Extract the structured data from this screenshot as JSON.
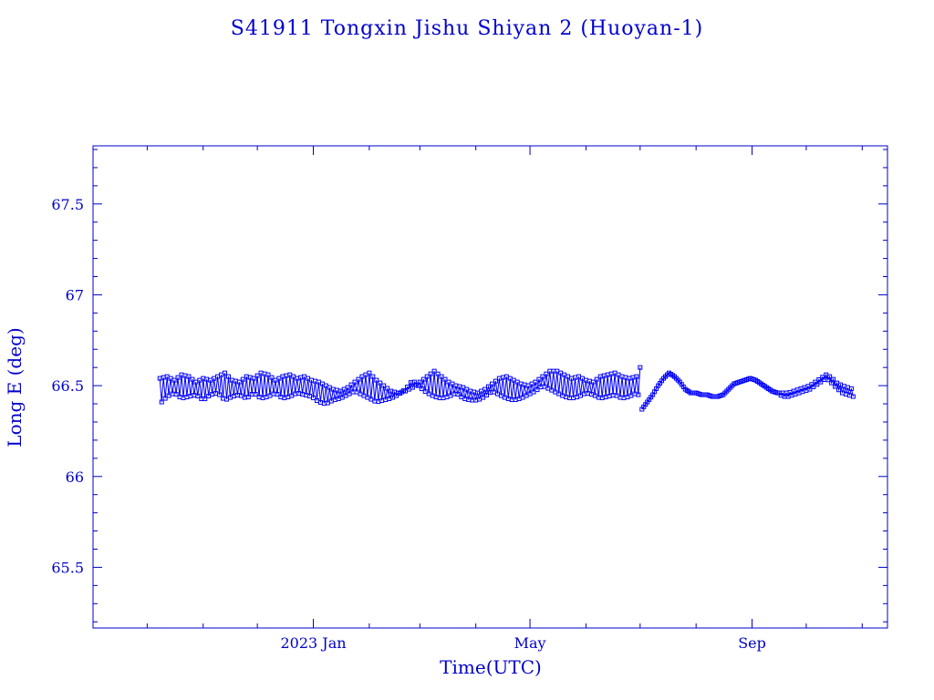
{
  "chart_data": {
    "type": "scatter",
    "title": "S41911 Tongxin Jishu Shiyan 2  (Huoyan-1)",
    "xlabel": "Time(UTC)",
    "ylabel": "Long E (deg)",
    "xlim": [
      "2022-09-01",
      "2023-11-15"
    ],
    "ylim": [
      65.166,
      67.82
    ],
    "x_ticks": [
      {
        "date": "2023-01-01",
        "label": "2023 Jan"
      },
      {
        "date": "2023-05-01",
        "label": "May"
      },
      {
        "date": "2023-09-01",
        "label": "Sep"
      }
    ],
    "y_ticks": [
      {
        "value": 65.5,
        "label": "65.5"
      },
      {
        "value": 66,
        "label": "66"
      },
      {
        "value": 66.5,
        "label": "66.5"
      },
      {
        "value": 67,
        "label": "67"
      },
      {
        "value": 67.5,
        "label": "67.5"
      }
    ],
    "grid": false,
    "marker": "open-square",
    "color": "#0000ff",
    "series": [
      {
        "x": [
          "2022-10-08",
          "2022-10-12",
          "2022-10-16",
          "2022-10-20",
          "2022-10-24",
          "2022-10-28",
          "2022-11-01",
          "2022-11-05",
          "2022-11-09",
          "2022-11-13",
          "2022-11-17",
          "2022-11-21",
          "2022-11-25",
          "2022-11-29",
          "2022-12-03",
          "2022-12-07",
          "2022-12-11",
          "2022-12-15",
          "2022-12-19",
          "2022-12-23",
          "2022-12-27",
          "2022-12-31",
          "2023-01-04",
          "2023-01-08",
          "2023-01-12",
          "2023-01-16",
          "2023-01-20",
          "2023-01-24",
          "2023-01-28",
          "2023-02-01",
          "2023-02-05",
          "2023-02-09",
          "2023-02-13",
          "2023-02-17",
          "2023-02-21",
          "2023-02-25",
          "2023-03-01",
          "2023-03-05",
          "2023-03-09",
          "2023-03-13",
          "2023-03-17",
          "2023-03-21",
          "2023-03-25",
          "2023-03-29",
          "2023-04-02",
          "2023-04-06",
          "2023-04-10",
          "2023-04-14",
          "2023-04-18",
          "2023-04-22",
          "2023-04-26",
          "2023-04-30",
          "2023-05-04",
          "2023-05-08",
          "2023-05-12",
          "2023-05-16",
          "2023-05-20",
          "2023-05-24",
          "2023-05-28",
          "2023-06-01",
          "2023-06-05",
          "2023-06-09",
          "2023-06-13",
          "2023-06-17",
          "2023-06-21",
          "2023-06-25",
          "2023-06-29",
          "2023-07-01"
        ],
        "y_upper": [
          66.54,
          66.55,
          66.53,
          66.56,
          66.55,
          66.52,
          66.54,
          66.53,
          66.55,
          66.57,
          66.53,
          66.52,
          66.55,
          66.54,
          66.57,
          66.56,
          66.53,
          66.55,
          66.56,
          66.54,
          66.55,
          66.53,
          66.52,
          66.5,
          66.48,
          66.47,
          66.49,
          66.52,
          66.55,
          66.57,
          66.53,
          66.5,
          66.47,
          66.46,
          66.47,
          66.49,
          66.52,
          66.55,
          66.58,
          66.55,
          66.52,
          66.5,
          66.49,
          66.47,
          66.46,
          66.48,
          66.51,
          66.54,
          66.55,
          66.53,
          66.51,
          66.5,
          66.52,
          66.55,
          66.58,
          66.58,
          66.56,
          66.54,
          66.55,
          66.53,
          66.52,
          66.55,
          66.56,
          66.57,
          66.55,
          66.54,
          66.55,
          66.6
        ],
        "y_lower": [
          66.4,
          66.44,
          66.46,
          66.43,
          66.44,
          66.45,
          66.42,
          66.45,
          66.46,
          66.42,
          66.44,
          66.45,
          66.43,
          66.46,
          66.43,
          66.44,
          66.46,
          66.43,
          66.44,
          66.46,
          66.45,
          66.44,
          66.41,
          66.4,
          66.42,
          66.43,
          66.45,
          66.47,
          66.45,
          66.43,
          66.41,
          66.42,
          66.43,
          66.45,
          66.48,
          66.53,
          66.49,
          66.46,
          66.44,
          66.43,
          66.44,
          66.46,
          66.43,
          66.42,
          66.42,
          66.44,
          66.47,
          66.45,
          66.43,
          66.42,
          66.43,
          66.45,
          66.47,
          66.5,
          66.48,
          66.46,
          66.44,
          66.43,
          66.44,
          66.46,
          66.45,
          66.43,
          66.44,
          66.45,
          66.43,
          66.44,
          66.46,
          66.44
        ]
      },
      {
        "x": [
          "2023-07-02",
          "2023-07-05",
          "2023-07-08",
          "2023-07-11",
          "2023-07-14",
          "2023-07-17",
          "2023-07-20",
          "2023-07-23",
          "2023-07-26",
          "2023-07-29",
          "2023-08-01",
          "2023-08-04",
          "2023-08-07",
          "2023-08-10",
          "2023-08-13",
          "2023-08-16",
          "2023-08-19",
          "2023-08-22",
          "2023-08-25",
          "2023-08-28",
          "2023-08-31",
          "2023-09-03",
          "2023-09-06",
          "2023-09-09",
          "2023-09-12",
          "2023-09-15",
          "2023-09-18",
          "2023-09-21",
          "2023-09-24",
          "2023-09-27",
          "2023-09-30",
          "2023-10-03",
          "2023-10-06",
          "2023-10-09",
          "2023-10-12",
          "2023-10-15",
          "2023-10-18",
          "2023-10-21",
          "2023-10-24",
          "2023-10-27"
        ],
        "y": [
          66.37,
          66.41,
          66.45,
          66.5,
          66.54,
          66.57,
          66.55,
          66.52,
          66.48,
          66.46,
          66.46,
          66.45,
          66.45,
          66.44,
          66.44,
          66.45,
          66.48,
          66.51,
          66.52,
          66.53,
          66.54,
          66.53,
          66.51,
          66.49,
          66.47,
          66.46,
          66.45,
          66.45,
          66.46,
          66.47,
          66.48,
          66.49,
          66.51,
          66.53,
          66.55,
          66.53,
          66.5,
          66.48,
          66.47,
          66.46
        ],
        "y_spread": [
          0,
          0,
          0,
          0,
          0,
          0,
          0,
          0,
          0,
          0,
          0,
          0,
          0,
          0,
          0,
          0,
          0,
          0,
          0,
          0,
          0,
          0,
          0,
          0,
          0,
          0,
          0.02,
          0.02,
          0.02,
          0.02,
          0.02,
          0.02,
          0.02,
          0.02,
          0.02,
          0.03,
          0.03,
          0.04,
          0.04,
          0.04
        ]
      }
    ]
  }
}
